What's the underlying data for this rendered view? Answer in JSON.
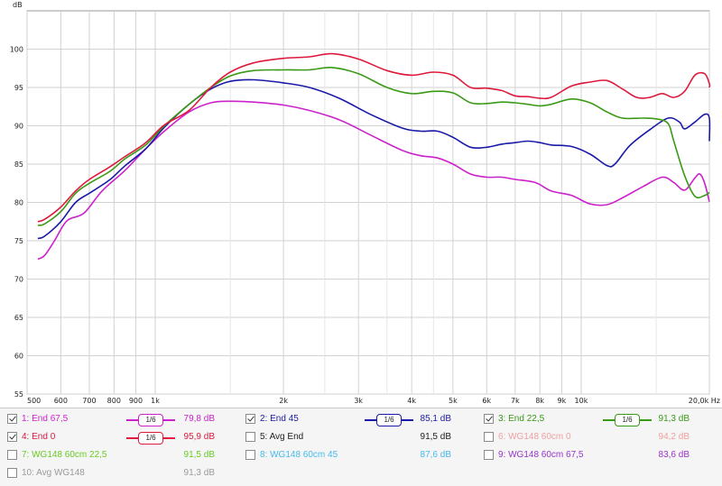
{
  "chart_data": {
    "type": "line",
    "ylabel": "dB",
    "ylim": [
      55,
      105
    ],
    "xlim": [
      500,
      20000
    ],
    "x_scale": "log",
    "grid": true,
    "y_ticks": [
      55,
      60,
      65,
      70,
      75,
      80,
      85,
      90,
      95,
      100
    ],
    "x_ticks": [
      {
        "v": 500,
        "label": "500"
      },
      {
        "v": 600,
        "label": "600"
      },
      {
        "v": 700,
        "label": "700"
      },
      {
        "v": 800,
        "label": "800"
      },
      {
        "v": 900,
        "label": "900"
      },
      {
        "v": 1000,
        "label": "1k"
      },
      {
        "v": 2000,
        "label": "2k"
      },
      {
        "v": 3000,
        "label": "3k"
      },
      {
        "v": 4000,
        "label": "4k"
      },
      {
        "v": 5000,
        "label": "5k"
      },
      {
        "v": 6000,
        "label": "6k"
      },
      {
        "v": 7000,
        "label": "7k"
      },
      {
        "v": 8000,
        "label": "8k"
      },
      {
        "v": 9000,
        "label": "9k"
      },
      {
        "v": 10000,
        "label": "10k"
      },
      {
        "v": 20000,
        "label": "20,0k Hz"
      }
    ],
    "x_minor": [
      1500,
      2500,
      3500,
      4500,
      15000
    ],
    "series": [
      {
        "name": "1: End 67,5",
        "color": "#cc22cc",
        "points": [
          [
            530,
            72.6
          ],
          [
            550,
            73.1
          ],
          [
            580,
            75
          ],
          [
            620,
            77.6
          ],
          [
            680,
            78.6
          ],
          [
            750,
            81.5
          ],
          [
            850,
            84.2
          ],
          [
            950,
            87
          ],
          [
            1050,
            89.3
          ],
          [
            1200,
            91.8
          ],
          [
            1350,
            93
          ],
          [
            1500,
            93.2
          ],
          [
            1700,
            93.1
          ],
          [
            2000,
            92.7
          ],
          [
            2300,
            92
          ],
          [
            2700,
            90.8
          ],
          [
            3200,
            88.8
          ],
          [
            3800,
            86.8
          ],
          [
            4200,
            86.1
          ],
          [
            4600,
            85.8
          ],
          [
            5000,
            85
          ],
          [
            5500,
            83.7
          ],
          [
            6000,
            83.3
          ],
          [
            6500,
            83.3
          ],
          [
            7000,
            83
          ],
          [
            7800,
            82.6
          ],
          [
            8500,
            81.5
          ],
          [
            9500,
            80.9
          ],
          [
            10500,
            79.8
          ],
          [
            11500,
            79.7
          ],
          [
            12500,
            80.6
          ],
          [
            14000,
            82.1
          ],
          [
            15500,
            83.3
          ],
          [
            16500,
            82.6
          ],
          [
            17500,
            81.6
          ],
          [
            18500,
            83.2
          ],
          [
            19000,
            83.7
          ],
          [
            19500,
            82.5
          ],
          [
            20000,
            80.1
          ]
        ]
      },
      {
        "name": "2: End 45",
        "color": "#1a1aa8",
        "points": [
          [
            530,
            75.3
          ],
          [
            550,
            75.6
          ],
          [
            600,
            77.5
          ],
          [
            650,
            80
          ],
          [
            700,
            81.2
          ],
          [
            780,
            82.9
          ],
          [
            850,
            84.8
          ],
          [
            950,
            87
          ],
          [
            1050,
            89.8
          ],
          [
            1200,
            92.8
          ],
          [
            1350,
            94.8
          ],
          [
            1500,
            95.8
          ],
          [
            1700,
            96
          ],
          [
            2000,
            95.6
          ],
          [
            2300,
            95
          ],
          [
            2700,
            93.6
          ],
          [
            3200,
            91.5
          ],
          [
            3800,
            89.7
          ],
          [
            4200,
            89.3
          ],
          [
            4600,
            89.3
          ],
          [
            5000,
            88.5
          ],
          [
            5500,
            87.2
          ],
          [
            6000,
            87.2
          ],
          [
            6500,
            87.6
          ],
          [
            7000,
            87.8
          ],
          [
            7500,
            88
          ],
          [
            8000,
            87.8
          ],
          [
            8500,
            87.5
          ],
          [
            9500,
            87.3
          ],
          [
            10500,
            86.3
          ],
          [
            11500,
            84.8
          ],
          [
            12000,
            85
          ],
          [
            13000,
            87.4
          ],
          [
            14500,
            89.5
          ],
          [
            16000,
            91
          ],
          [
            17000,
            90.5
          ],
          [
            17500,
            89.6
          ],
          [
            18500,
            90.5
          ],
          [
            19500,
            91.5
          ],
          [
            20000,
            91
          ],
          [
            20500,
            88
          ]
        ]
      },
      {
        "name": "3: End 22,5",
        "color": "#3a9a16",
        "points": [
          [
            530,
            77
          ],
          [
            550,
            77.2
          ],
          [
            600,
            78.8
          ],
          [
            650,
            81.2
          ],
          [
            700,
            82.5
          ],
          [
            780,
            84
          ],
          [
            850,
            85.7
          ],
          [
            950,
            87.5
          ],
          [
            1050,
            90
          ],
          [
            1200,
            92.8
          ],
          [
            1350,
            95
          ],
          [
            1500,
            96.5
          ],
          [
            1700,
            97.2
          ],
          [
            2000,
            97.3
          ],
          [
            2300,
            97.3
          ],
          [
            2600,
            97.6
          ],
          [
            3000,
            96.8
          ],
          [
            3500,
            95
          ],
          [
            4000,
            94.2
          ],
          [
            4500,
            94.5
          ],
          [
            5000,
            94.3
          ],
          [
            5500,
            93
          ],
          [
            6000,
            92.9
          ],
          [
            6500,
            93.1
          ],
          [
            7000,
            93
          ],
          [
            7500,
            92.8
          ],
          [
            8000,
            92.6
          ],
          [
            8500,
            92.8
          ],
          [
            9500,
            93.5
          ],
          [
            10500,
            93
          ],
          [
            11500,
            91.8
          ],
          [
            12500,
            91
          ],
          [
            14000,
            91
          ],
          [
            15000,
            90.9
          ],
          [
            16000,
            90.3
          ],
          [
            16500,
            88
          ],
          [
            17500,
            83.5
          ],
          [
            18500,
            80.8
          ],
          [
            19500,
            80.9
          ],
          [
            20500,
            81.3
          ]
        ]
      },
      {
        "name": "4: End 0",
        "color": "#dd1a3c",
        "points": [
          [
            530,
            77.5
          ],
          [
            550,
            77.8
          ],
          [
            600,
            79.4
          ],
          [
            650,
            81.5
          ],
          [
            700,
            83
          ],
          [
            780,
            84.6
          ],
          [
            850,
            86
          ],
          [
            950,
            87.8
          ],
          [
            1050,
            90.1
          ],
          [
            1200,
            92
          ],
          [
            1350,
            95
          ],
          [
            1500,
            97
          ],
          [
            1700,
            98.2
          ],
          [
            2000,
            98.8
          ],
          [
            2300,
            99
          ],
          [
            2600,
            99.4
          ],
          [
            3000,
            98.7
          ],
          [
            3500,
            97.2
          ],
          [
            4000,
            96.6
          ],
          [
            4500,
            97
          ],
          [
            5000,
            96.6
          ],
          [
            5500,
            95
          ],
          [
            6000,
            94.9
          ],
          [
            6500,
            94.6
          ],
          [
            7000,
            93.9
          ],
          [
            7500,
            93.8
          ],
          [
            8000,
            93.6
          ],
          [
            8500,
            93.7
          ],
          [
            9500,
            95.2
          ],
          [
            10500,
            95.7
          ],
          [
            11500,
            95.9
          ],
          [
            12500,
            94.8
          ],
          [
            13500,
            93.7
          ],
          [
            14500,
            93.7
          ],
          [
            15500,
            94.2
          ],
          [
            16500,
            93.7
          ],
          [
            17500,
            94.5
          ],
          [
            18500,
            96.6
          ],
          [
            19500,
            96.8
          ],
          [
            20000,
            95.5
          ],
          [
            20500,
            95
          ]
        ]
      }
    ]
  },
  "legend": {
    "items": [
      {
        "label": "1: End 67,5",
        "value": "79,8 dB",
        "checked": true,
        "color": "#cc22cc",
        "smooth": "1/6"
      },
      {
        "label": "2: End 45",
        "value": "85,1 dB",
        "checked": true,
        "color": "#1a1aa8",
        "smooth": "1/6"
      },
      {
        "label": "3: End 22,5",
        "value": "91,3 dB",
        "checked": true,
        "color": "#3a9a16",
        "smooth": "1/6"
      },
      {
        "label": "4: End 0",
        "value": "95,9 dB",
        "checked": true,
        "color": "#dd1a3c",
        "smooth": "1/6"
      },
      {
        "label": "5: Avg End",
        "value": "91,5 dB",
        "checked": false,
        "color": "#222222"
      },
      {
        "label": "6: WG148 60cm 0",
        "value": "94,2 dB",
        "checked": false,
        "color": "#f0a0a0"
      },
      {
        "label": "7: WG148 60cm 22,5",
        "value": "91,5 dB",
        "checked": false,
        "color": "#66cc22"
      },
      {
        "label": "8: WG148 60cm 45",
        "value": "87,6 dB",
        "checked": false,
        "color": "#44bbee"
      },
      {
        "label": "9: WG148 60cm 67,5",
        "value": "83,6 dB",
        "checked": false,
        "color": "#9933cc"
      },
      {
        "label": "10: Avg WG148",
        "value": "91,3 dB",
        "checked": false,
        "color": "#9a9a9a"
      }
    ]
  }
}
